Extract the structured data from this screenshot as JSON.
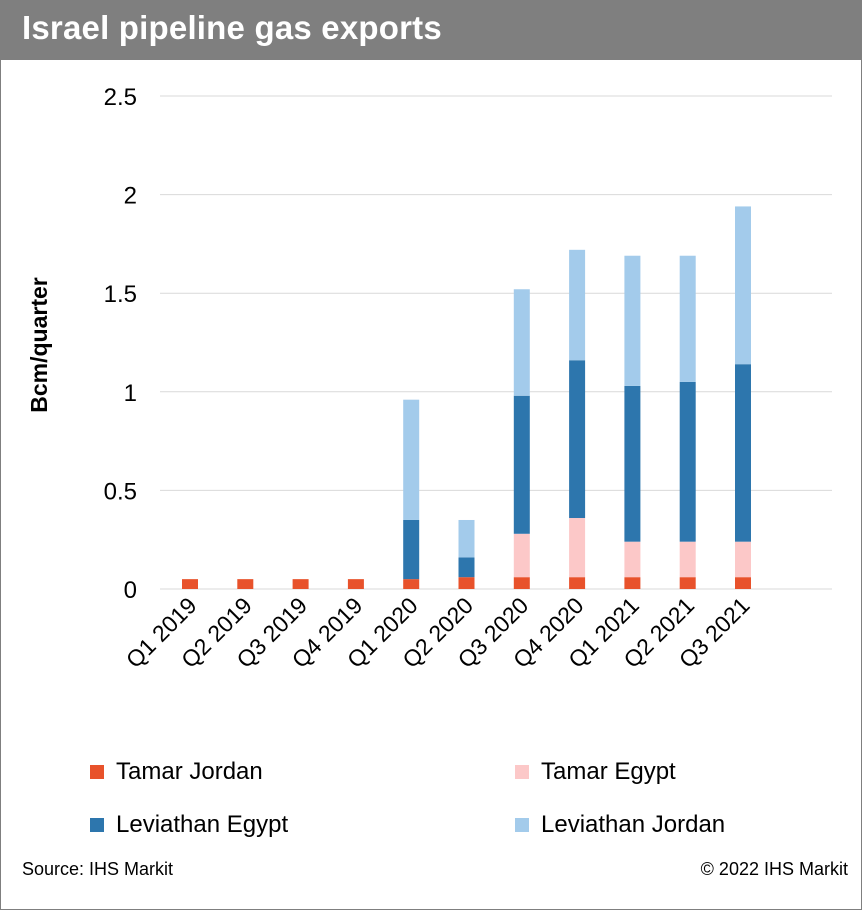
{
  "title": "Israel pipeline gas exports",
  "source": "Source: IHS Markit",
  "copyright": "© 2022 IHS Markit",
  "colors": {
    "title_bg": "#7f7f7f",
    "tamar_jordan": "#e8522b",
    "tamar_egypt": "#fcc8c8",
    "leviathan_egypt": "#2d76ad",
    "leviathan_jordan": "#a3cbeb",
    "grid": "#d9d9d9"
  },
  "chart_data": {
    "type": "bar",
    "stacked": true,
    "title": "Israel pipeline gas exports",
    "xlabel": "",
    "ylabel": "Bcm/quarter",
    "ylim": [
      0,
      2.5
    ],
    "yticks": [
      "0",
      "0.5",
      "1",
      "1.5",
      "2",
      "2.5"
    ],
    "grid": true,
    "legend_position": "bottom",
    "categories": [
      "Q1 2019",
      "Q2 2019",
      "Q3 2019",
      "Q4 2019",
      "Q1 2020",
      "Q2 2020",
      "Q3 2020",
      "Q4 2020",
      "Q1 2021",
      "Q2 2021",
      "Q3 2021"
    ],
    "series": [
      {
        "name": "Tamar Jordan",
        "color": "#e8522b",
        "values": [
          0.05,
          0.05,
          0.05,
          0.05,
          0.05,
          0.06,
          0.06,
          0.06,
          0.06,
          0.06,
          0.06
        ]
      },
      {
        "name": "Tamar Egypt",
        "color": "#fcc8c8",
        "values": [
          0,
          0,
          0,
          0,
          0,
          0,
          0.22,
          0.3,
          0.18,
          0.18,
          0.18
        ]
      },
      {
        "name": "Leviathan Egypt",
        "color": "#2d76ad",
        "values": [
          0,
          0,
          0,
          0,
          0.3,
          0.1,
          0.7,
          0.8,
          0.79,
          0.81,
          0.9
        ]
      },
      {
        "name": "Leviathan Jordan",
        "color": "#a3cbeb",
        "values": [
          0,
          0,
          0,
          0,
          0.61,
          0.19,
          0.54,
          0.56,
          0.66,
          0.64,
          0.8
        ]
      }
    ]
  }
}
